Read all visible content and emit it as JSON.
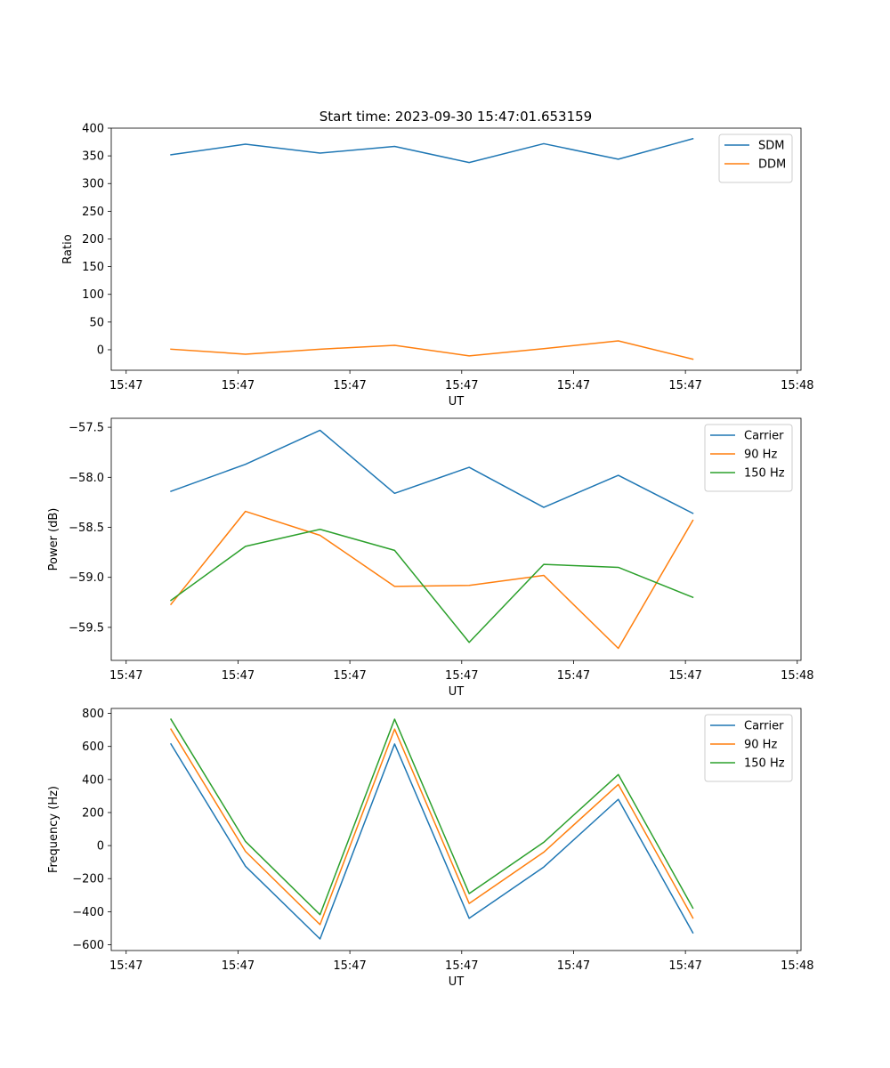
{
  "figure": {
    "title": "Start time: 2023-09-30 15:47:01.653159"
  },
  "colors": {
    "blue": "#1f77b4",
    "orange": "#ff7f0e",
    "green": "#2ca02c"
  },
  "chart_data": [
    {
      "type": "line",
      "title": "Start time: 2023-09-30 15:47:01.653159",
      "xlabel": "UT",
      "ylabel": "Ratio",
      "x": [
        1,
        2,
        3,
        4,
        5,
        6,
        7,
        8
      ],
      "xlim": [
        0.2,
        9.45
      ],
      "xticks": [
        0.4,
        1.9,
        3.4,
        4.9,
        6.4,
        7.9,
        9.4
      ],
      "xtick_labels": [
        "15:47",
        "15:47",
        "15:47",
        "15:47",
        "15:47",
        "15:47",
        "15:48"
      ],
      "ylim": [
        -37,
        400
      ],
      "yticks": [
        0,
        50,
        100,
        150,
        200,
        250,
        300,
        350,
        400
      ],
      "ytick_labels": [
        "0",
        "50",
        "100",
        "150",
        "200",
        "250",
        "300",
        "350",
        "400"
      ],
      "legend": "upper right",
      "series": [
        {
          "name": "SDM",
          "color": "#1f77b4",
          "values": [
            352,
            371,
            355,
            367,
            338,
            372,
            344,
            381
          ]
        },
        {
          "name": "DDM",
          "color": "#ff7f0e",
          "values": [
            1,
            -8,
            1,
            8,
            -11,
            2,
            16,
            -17
          ]
        }
      ]
    },
    {
      "type": "line",
      "title": "",
      "xlabel": "UT",
      "ylabel": "Power (dB)",
      "x": [
        1,
        2,
        3,
        4,
        5,
        6,
        7,
        8
      ],
      "xlim": [
        0.2,
        9.45
      ],
      "xticks": [
        0.4,
        1.9,
        3.4,
        4.9,
        6.4,
        7.9,
        9.4
      ],
      "xtick_labels": [
        "15:47",
        "15:47",
        "15:47",
        "15:47",
        "15:47",
        "15:47",
        "15:48"
      ],
      "ylim": [
        -59.83,
        -57.41
      ],
      "yticks": [
        -59.5,
        -59.0,
        -58.5,
        -58.0,
        -57.5
      ],
      "ytick_labels": [
        "−59.5",
        "−59.0",
        "−58.5",
        "−58.0",
        "−57.5"
      ],
      "legend": "upper right",
      "series": [
        {
          "name": "Carrier",
          "color": "#1f77b4",
          "values": [
            -58.14,
            -57.87,
            -57.53,
            -58.16,
            -57.9,
            -58.3,
            -57.98,
            -58.36
          ]
        },
        {
          "name": "90 Hz",
          "color": "#ff7f0e",
          "values": [
            -59.27,
            -58.34,
            -58.58,
            -59.09,
            -59.08,
            -58.98,
            -59.71,
            -58.43
          ]
        },
        {
          "name": "150 Hz",
          "color": "#2ca02c",
          "values": [
            -59.23,
            -58.69,
            -58.52,
            -58.73,
            -59.65,
            -58.87,
            -58.9,
            -59.2
          ]
        }
      ]
    },
    {
      "type": "line",
      "title": "",
      "xlabel": "UT",
      "ylabel": "Frequency (Hz)",
      "x": [
        1,
        2,
        3,
        4,
        5,
        6,
        7,
        8
      ],
      "xlim": [
        0.2,
        9.45
      ],
      "xticks": [
        0.4,
        1.9,
        3.4,
        4.9,
        6.4,
        7.9,
        9.4
      ],
      "xtick_labels": [
        "15:47",
        "15:47",
        "15:47",
        "15:47",
        "15:47",
        "15:47",
        "15:48"
      ],
      "ylim": [
        -635,
        830
      ],
      "yticks": [
        -600,
        -400,
        -200,
        0,
        200,
        400,
        600,
        800
      ],
      "ytick_labels": [
        "−600",
        "−400",
        "−200",
        "0",
        "200",
        "400",
        "600",
        "800"
      ],
      "legend": "upper right",
      "series": [
        {
          "name": "Carrier",
          "color": "#1f77b4",
          "values": [
            615,
            -125,
            -565,
            615,
            -440,
            -130,
            280,
            -528
          ]
        },
        {
          "name": "90 Hz",
          "color": "#ff7f0e",
          "values": [
            705,
            -35,
            -478,
            705,
            -350,
            -40,
            370,
            -438
          ]
        },
        {
          "name": "150 Hz",
          "color": "#2ca02c",
          "values": [
            765,
            25,
            -418,
            765,
            -290,
            20,
            430,
            -378
          ]
        }
      ]
    }
  ]
}
